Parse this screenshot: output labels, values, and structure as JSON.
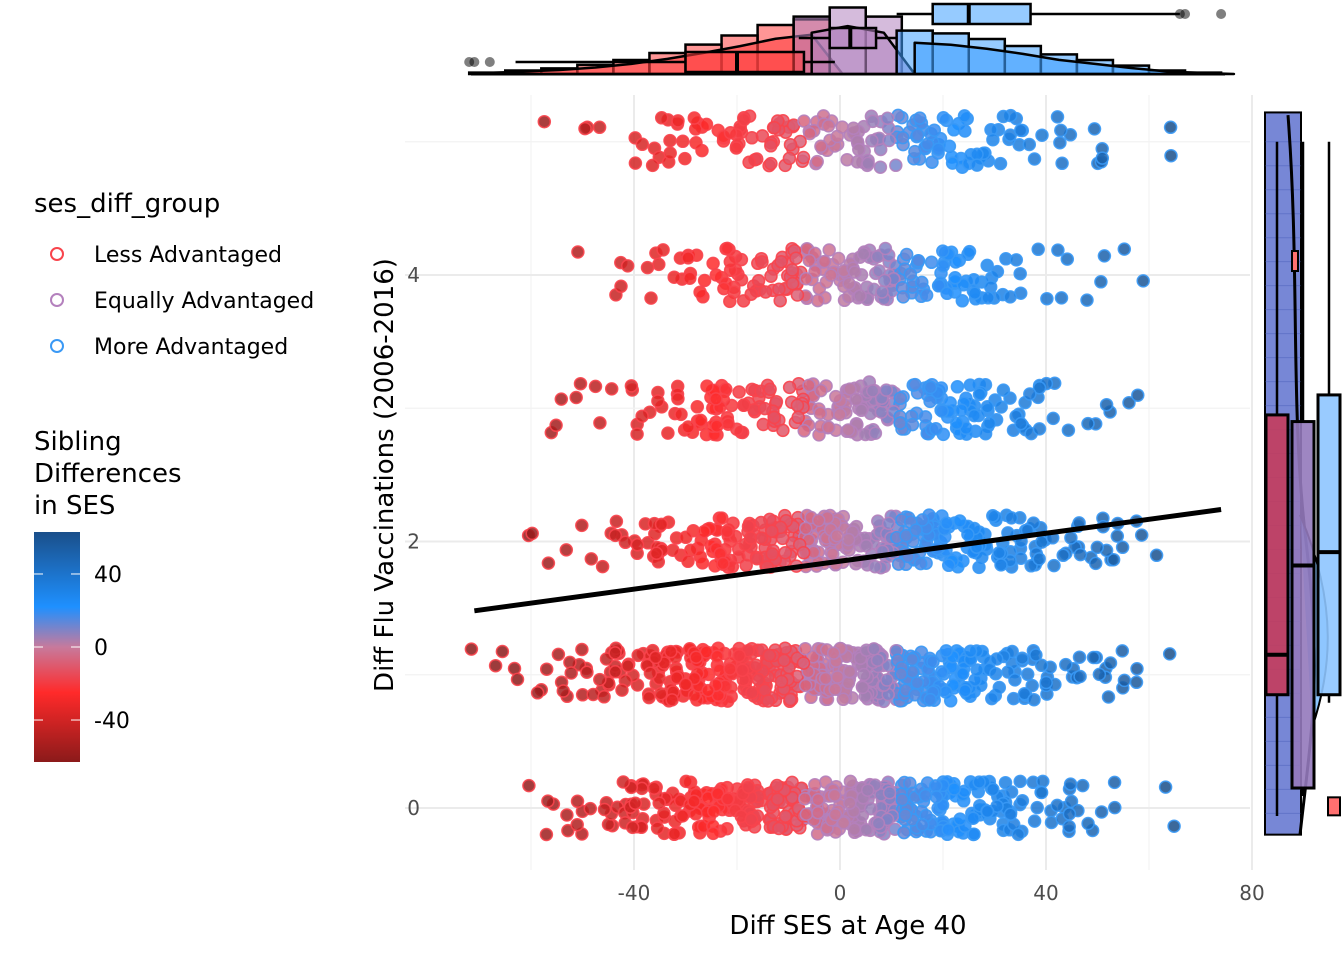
{
  "chart_data": {
    "type": "scatter",
    "title": "",
    "xlabel": "Diff SES at Age 40",
    "ylabel": "Diff Flu Vaccinations (2006-2016)",
    "xlim": [
      -79,
      81
    ],
    "ylim": [
      -0.45,
      5.3
    ],
    "x_ticks": [
      -40,
      0,
      40,
      80
    ],
    "x_tick_labels": [
      "-40",
      "0",
      "40",
      "80"
    ],
    "y_ticks": [
      0,
      2,
      4
    ],
    "y_tick_labels": [
      "0",
      "2",
      "4"
    ],
    "grid": true,
    "legend_position": "left",
    "group_legend": {
      "title": "ses_diff_group",
      "entries": [
        {
          "label": "Less Advantaged",
          "color": "#f8444c"
        },
        {
          "label": "Equally Advantaged",
          "color": "#b481bd"
        },
        {
          "label": "More Advantaged",
          "color": "#3a99f5"
        }
      ]
    },
    "colorbar": {
      "title_lines": [
        "Sibling",
        "Differences",
        "in SES"
      ],
      "ticks": [
        40,
        0,
        -40
      ],
      "tick_labels": [
        "40",
        "0",
        "-40"
      ],
      "range": [
        -63,
        63
      ],
      "stops": [
        {
          "value": -63,
          "color": "#8b1a1a"
        },
        {
          "value": -25,
          "color": "#ff2a2a"
        },
        {
          "value": 0,
          "color": "#c77a9c"
        },
        {
          "value": 22,
          "color": "#1e90ff"
        },
        {
          "value": 63,
          "color": "#1a4f8a"
        }
      ]
    },
    "groups": [
      {
        "name": "Less Advantaged",
        "range": [
          -80,
          -7
        ]
      },
      {
        "name": "Equally Advantaged",
        "range": [
          -7,
          11
        ]
      },
      {
        "name": "More Advantaged",
        "range": [
          11,
          80
        ]
      }
    ],
    "rows": [
      {
        "y": 5,
        "n": 190,
        "xmin": -72,
        "xmax": 74,
        "center": 2,
        "spread": 26
      },
      {
        "y": 4,
        "n": 220,
        "xmin": -52,
        "xmax": 66,
        "center": 4,
        "spread": 24
      },
      {
        "y": 3,
        "n": 260,
        "xmin": -58,
        "xmax": 60,
        "center": 3,
        "spread": 24
      },
      {
        "y": 2,
        "n": 380,
        "xmin": -63,
        "xmax": 68,
        "center": 2,
        "spread": 24
      },
      {
        "y": 1,
        "n": 520,
        "xmin": -72,
        "xmax": 66,
        "center": -2,
        "spread": 25
      },
      {
        "y": 0,
        "n": 460,
        "xmin": -62,
        "xmax": 66,
        "center": -2,
        "spread": 24
      }
    ],
    "jitter_height": 0.2,
    "regression_line": {
      "x": [
        -71,
        74
      ],
      "y": [
        1.48,
        2.24
      ]
    },
    "top_marginal": {
      "type": "histogram+density+boxplot",
      "groups": [
        {
          "name": "Less Advantaged",
          "fill": "#ff4040",
          "hist_bins": [
            -72,
            -65,
            -58,
            -51,
            -44,
            -37,
            -30,
            -23,
            -16,
            -9
          ],
          "hist_heights": [
            0.02,
            0.05,
            0.08,
            0.13,
            0.2,
            0.3,
            0.42,
            0.55,
            0.7,
            0.78
          ],
          "box": {
            "min": -63,
            "q1": -30,
            "median": -20,
            "q3": -7,
            "max": -1,
            "outliers": [
              -72,
              -71,
              -68
            ]
          }
        },
        {
          "name": "Equally Advantaged",
          "fill": "#b283c0",
          "hist_bins": [
            -9,
            -2,
            5
          ],
          "hist_heights": [
            0.82,
            0.95,
            0.82
          ],
          "box": {
            "min": -8,
            "q1": -2,
            "median": 2,
            "q3": 7,
            "max": 11,
            "outliers": []
          }
        },
        {
          "name": "More Advantaged",
          "fill": "#3fa0ff",
          "hist_bins": [
            11,
            18,
            25,
            32,
            39,
            46,
            53,
            60,
            67
          ],
          "hist_heights": [
            0.62,
            0.58,
            0.5,
            0.4,
            0.28,
            0.2,
            0.12,
            0.05,
            0.02
          ],
          "box": {
            "min": 11,
            "q1": 18,
            "median": 25,
            "q3": 37,
            "max": 66,
            "outliers": [
              66,
              67,
              74
            ]
          }
        }
      ]
    },
    "right_marginal": {
      "type": "histogram+density+boxplot",
      "groups": [
        {
          "name": "Less Advantaged",
          "box": {
            "min": 0,
            "q1": 0.85,
            "median": 1.15,
            "q3": 2.95,
            "max": 5
          }
        },
        {
          "name": "Equally Advantaged",
          "box": {
            "min": 0.15,
            "q1": 0.15,
            "median": 1.82,
            "q3": 2.9,
            "max": 5
          }
        },
        {
          "name": "More Advantaged",
          "box": {
            "min": 0.85,
            "q1": 0.85,
            "median": 1.92,
            "q3": 3.1,
            "max": 5
          }
        }
      ]
    }
  }
}
